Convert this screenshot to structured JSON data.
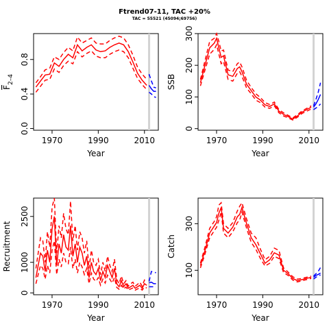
{
  "title": "Ftrend07-11, TAC +20%",
  "subtitle": "TAC = 55521 (45094;69756)",
  "colors": {
    "historic": "#ff0000",
    "projection": "#0000ff",
    "marker": "#d3d3d3"
  },
  "chart_data": [
    {
      "type": "line",
      "panel": "top-left",
      "xlabel": "Year",
      "ylabel": "F̅ 2–4",
      "ylabel_main": "F",
      "ylabel_sub": "2–4",
      "xlim": [
        1962,
        2016
      ],
      "ylim": [
        -0.02,
        1.1
      ],
      "xticks": [
        1970,
        1990,
        2010
      ],
      "yticks": [
        0.0,
        0.4,
        0.8
      ],
      "yticklabels": [
        "0.0",
        "0.4",
        "0.8"
      ],
      "vline": 2012,
      "historic": {
        "years": [
          1963,
          1965,
          1967,
          1969,
          1971,
          1973,
          1975,
          1977,
          1979,
          1981,
          1983,
          1985,
          1987,
          1989,
          1991,
          1993,
          1995,
          1997,
          1999,
          2001,
          2003,
          2005,
          2007,
          2009,
          2011
        ],
        "median": [
          0.48,
          0.55,
          0.62,
          0.63,
          0.76,
          0.72,
          0.8,
          0.86,
          0.82,
          0.97,
          0.9,
          0.94,
          0.97,
          0.91,
          0.89,
          0.9,
          0.94,
          0.97,
          0.99,
          0.97,
          0.89,
          0.77,
          0.64,
          0.56,
          0.5
        ],
        "upper": [
          0.53,
          0.6,
          0.68,
          0.7,
          0.83,
          0.8,
          0.88,
          0.94,
          0.9,
          1.06,
          0.99,
          1.02,
          1.05,
          0.99,
          0.98,
          0.98,
          1.02,
          1.05,
          1.07,
          1.05,
          0.97,
          0.85,
          0.71,
          0.63,
          0.57
        ],
        "lower": [
          0.42,
          0.49,
          0.56,
          0.57,
          0.69,
          0.65,
          0.73,
          0.78,
          0.75,
          0.89,
          0.83,
          0.87,
          0.9,
          0.84,
          0.82,
          0.82,
          0.86,
          0.89,
          0.91,
          0.89,
          0.82,
          0.7,
          0.58,
          0.51,
          0.45
        ]
      },
      "projection": {
        "years": [
          2012,
          2013,
          2014,
          2015
        ],
        "median": [
          0.5,
          0.46,
          0.43,
          0.43
        ],
        "upper": [
          0.63,
          0.55,
          0.48,
          0.47
        ],
        "lower": [
          0.42,
          0.4,
          0.37,
          0.36
        ]
      }
    },
    {
      "type": "line",
      "panel": "top-right",
      "xlabel": "Year",
      "ylabel": "SSB",
      "xlim": [
        1962,
        2016
      ],
      "ylim": [
        -5,
        300
      ],
      "xticks": [
        1970,
        1990,
        2010
      ],
      "yticks": [
        0,
        100,
        200,
        300
      ],
      "yticklabels": [
        "0",
        "100",
        "200",
        "300"
      ],
      "vline": 2012,
      "historic": {
        "years": [
          1963,
          1965,
          1967,
          1969,
          1970,
          1971,
          1972,
          1973,
          1975,
          1977,
          1979,
          1980,
          1981,
          1983,
          1985,
          1987,
          1989,
          1991,
          1993,
          1995,
          1997,
          1999,
          2001,
          2003,
          2005,
          2007,
          2009,
          2011
        ],
        "median": [
          145,
          200,
          255,
          270,
          285,
          255,
          225,
          230,
          170,
          165,
          190,
          195,
          180,
          140,
          120,
          100,
          90,
          75,
          70,
          78,
          55,
          45,
          38,
          30,
          40,
          52,
          60,
          68
        ],
        "upper": [
          155,
          215,
          275,
          285,
          300,
          275,
          245,
          248,
          185,
          180,
          205,
          210,
          195,
          152,
          130,
          110,
          98,
          82,
          76,
          84,
          60,
          50,
          42,
          34,
          44,
          56,
          64,
          72
        ],
        "lower": [
          135,
          185,
          235,
          250,
          265,
          235,
          205,
          212,
          155,
          150,
          175,
          180,
          165,
          128,
          110,
          90,
          82,
          68,
          64,
          72,
          50,
          40,
          34,
          27,
          36,
          48,
          55,
          62
        ]
      },
      "projection": {
        "years": [
          2012,
          2013,
          2014,
          2015
        ],
        "median": [
          68,
          78,
          92,
          108
        ],
        "upper": [
          72,
          92,
          115,
          145
        ],
        "lower": [
          60,
          65,
          70,
          78
        ]
      }
    },
    {
      "type": "line",
      "panel": "bottom-left",
      "xlabel": "Year",
      "ylabel": "Recruitment",
      "xlim": [
        1962,
        2016
      ],
      "ylim": [
        -60,
        3100
      ],
      "xticks": [
        1970,
        1990,
        2010
      ],
      "yticks": [
        0,
        1000,
        2500
      ],
      "yticklabels": [
        "0",
        "1000",
        "2500"
      ],
      "vline": 2012,
      "historic": {
        "years": [
          1963,
          1964,
          1965,
          1966,
          1967,
          1968,
          1969,
          1970,
          1971,
          1972,
          1973,
          1974,
          1975,
          1976,
          1977,
          1978,
          1979,
          1980,
          1981,
          1982,
          1983,
          1984,
          1985,
          1986,
          1987,
          1988,
          1989,
          1990,
          1991,
          1992,
          1993,
          1994,
          1995,
          1996,
          1997,
          1998,
          1999,
          2000,
          2001,
          2002,
          2003,
          2004,
          2005,
          2006,
          2007,
          2008,
          2009,
          2010,
          2011
        ],
        "median": [
          500,
          900,
          1300,
          1200,
          700,
          1400,
          1000,
          2100,
          2500,
          900,
          1600,
          1300,
          1900,
          1500,
          1400,
          2200,
          1200,
          1600,
          1000,
          1500,
          1300,
          900,
          1200,
          500,
          1000,
          700,
          600,
          800,
          400,
          700,
          500,
          900,
          700,
          500,
          800,
          300,
          200,
          400,
          200,
          300,
          150,
          200,
          250,
          150,
          200,
          250,
          150,
          300,
          250
        ],
        "upper": [
          800,
          1300,
          1800,
          1700,
          1000,
          2000,
          1500,
          2800,
          3100,
          1300,
          2200,
          1800,
          2600,
          2100,
          1900,
          3000,
          1700,
          2200,
          1400,
          2000,
          1800,
          1300,
          1700,
          800,
          1400,
          1000,
          900,
          1100,
          600,
          1000,
          700,
          1200,
          900,
          700,
          1100,
          450,
          300,
          550,
          300,
          400,
          220,
          300,
          350,
          220,
          280,
          350,
          220,
          420,
          350
        ],
        "lower": [
          300,
          600,
          900,
          800,
          450,
          900,
          650,
          1400,
          1700,
          600,
          1100,
          850,
          1300,
          1000,
          950,
          1500,
          800,
          1100,
          650,
          1000,
          850,
          600,
          800,
          300,
          650,
          450,
          380,
          500,
          250,
          450,
          320,
          580,
          450,
          320,
          500,
          180,
          120,
          250,
          130,
          190,
          90,
          130,
          160,
          90,
          130,
          160,
          90,
          190,
          160
        ]
      },
      "projection": {
        "years": [
          2012,
          2013,
          2014,
          2015
        ],
        "median": [
          330,
          350,
          300,
          300
        ],
        "upper": [
          380,
          700,
          680,
          660
        ],
        "lower": [
          200,
          200,
          200,
          200
        ]
      }
    },
    {
      "type": "line",
      "panel": "bottom-right",
      "xlabel": "Year",
      "ylabel": "Catch",
      "xlim": [
        1962,
        2016
      ],
      "ylim": [
        -5,
        410
      ],
      "xticks": [
        1970,
        1990,
        2010
      ],
      "yticks": [
        100,
        300
      ],
      "yticklabels": [
        "100",
        "300"
      ],
      "vline": 2012,
      "historic": {
        "years": [
          1963,
          1965,
          1967,
          1969,
          1970,
          1971,
          1972,
          1973,
          1975,
          1977,
          1979,
          1980,
          1981,
          1983,
          1985,
          1987,
          1989,
          1991,
          1993,
          1995,
          1997,
          1999,
          2001,
          2003,
          2005,
          2007,
          2009,
          2011
        ],
        "median": [
          120,
          185,
          260,
          290,
          305,
          345,
          370,
          280,
          260,
          285,
          330,
          340,
          370,
          300,
          240,
          210,
          170,
          130,
          145,
          175,
          165,
          100,
          85,
          65,
          55,
          60,
          65,
          70
        ],
        "upper": [
          130,
          200,
          280,
          310,
          330,
          380,
          390,
          300,
          280,
          305,
          355,
          375,
          390,
          320,
          260,
          240,
          190,
          145,
          160,
          195,
          185,
          110,
          92,
          72,
          62,
          65,
          70,
          75
        ],
        "lower": [
          110,
          170,
          240,
          270,
          285,
          315,
          350,
          260,
          240,
          265,
          305,
          315,
          350,
          280,
          220,
          190,
          150,
          118,
          130,
          160,
          150,
          90,
          78,
          58,
          50,
          55,
          60,
          65
        ]
      },
      "projection": {
        "years": [
          2012,
          2013,
          2014,
          2015
        ],
        "median": [
          70,
          78,
          82,
          88
        ],
        "upper": [
          75,
          85,
          95,
          112
        ],
        "lower": [
          62,
          70,
          75,
          80
        ]
      }
    }
  ]
}
